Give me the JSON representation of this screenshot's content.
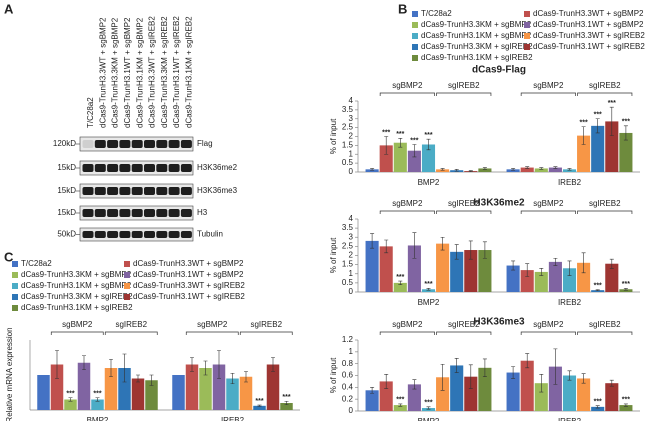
{
  "panels": [
    "A",
    "B",
    "C"
  ],
  "blot": {
    "lanes": [
      "T/C28a2",
      "dCas9-TrunH3.3WT + sgBMP2",
      "dCas9-TrunH3.3KM + sgBMP2",
      "dCas9-TrunH3.1WT + sgBMP2",
      "dCas9-TrunH3.1KM + sgBMP2",
      "dCas9-TrunH3.3WT + sgIREB2",
      "dCas9-TrunH3.3KM + sgIREB2",
      "dCas9-TrunH3.1WT + sgIREB2",
      "dCas9-TrunH3.1KM + sgIREB2"
    ],
    "rows": [
      {
        "label": "Flag",
        "marker": "120kD"
      },
      {
        "label": "H3K36me2",
        "marker": "15kD"
      },
      {
        "label": "H3K36me3",
        "marker": "15kD"
      },
      {
        "label": "H3",
        "marker": "15kD"
      },
      {
        "label": "Tubulin",
        "marker": "50kD"
      }
    ]
  },
  "chart_data": [
    {
      "type": "bar",
      "title": "dCas9-Flag",
      "ylabel": "% of input",
      "categories": [
        "BMP2",
        "IREB2"
      ],
      "ylim": [
        0,
        4
      ],
      "yticks": [
        0,
        0.5,
        1,
        1.5,
        2,
        2.5,
        3,
        3.5,
        4
      ],
      "brackets": [
        "sgBMP2",
        "sgIREB2"
      ],
      "series": [
        {
          "name": "T/C28a2",
          "color": "#4472c4",
          "values": [
            0.15,
            0.15
          ],
          "errors": [
            0.05,
            0.05
          ],
          "labels": [
            null,
            null
          ]
        },
        {
          "name": "dCas9-TrunH3.3WT + sgBMP2",
          "color": "#c0504d",
          "values": [
            1.5,
            0.25
          ],
          "errors": [
            0.5,
            0.05
          ],
          "labels": [
            "***",
            null
          ]
        },
        {
          "name": "dCas9-TrunH3.3KM + sgBMP2",
          "color": "#9bbb59",
          "values": [
            1.65,
            0.2
          ],
          "errors": [
            0.25,
            0.05
          ],
          "labels": [
            "***",
            null
          ]
        },
        {
          "name": "dCas9-TrunH3.1WT + sgBMP2",
          "color": "#8064a2",
          "values": [
            1.2,
            0.25
          ],
          "errors": [
            0.35,
            0.05
          ],
          "labels": [
            "***",
            null
          ]
        },
        {
          "name": "dCas9-TrunH3.1KM + sgBMP2",
          "color": "#4bacc6",
          "values": [
            1.55,
            0.15
          ],
          "errors": [
            0.3,
            0.05
          ],
          "labels": [
            "***",
            null
          ]
        },
        {
          "name": "dCas9-TrunH3.3WT + sgIREB2",
          "color": "#f79646",
          "values": [
            0.15,
            2.05
          ],
          "errors": [
            0.05,
            0.5
          ],
          "labels": [
            null,
            "***"
          ]
        },
        {
          "name": "dCas9-TrunH3.3KM + sgIREB2",
          "color": "#2e75b6",
          "values": [
            0.1,
            2.6
          ],
          "errors": [
            0.05,
            0.4
          ],
          "labels": [
            null,
            "***"
          ]
        },
        {
          "name": "dCas9-TrunH3.1WT + sgIREB2",
          "color": "#9e3532",
          "values": [
            0.05,
            2.85
          ],
          "errors": [
            0.03,
            0.8
          ],
          "labels": [
            null,
            "***"
          ]
        },
        {
          "name": "dCas9-TrunH3.1KM + sgIREB2",
          "color": "#6e8b3d",
          "values": [
            0.2,
            2.2
          ],
          "errors": [
            0.05,
            0.4
          ],
          "labels": [
            null,
            "***"
          ]
        }
      ]
    },
    {
      "type": "bar",
      "title": "H3K36me2",
      "ylabel": "% of input",
      "categories": [
        "BMP2",
        "IREB2"
      ],
      "ylim": [
        0,
        4
      ],
      "yticks": [
        0,
        0.5,
        1,
        1.5,
        2,
        2.5,
        3,
        3.5,
        4
      ],
      "brackets": [
        "sgBMP2",
        "sgIREB2"
      ],
      "series": [
        {
          "name": "T/C28a2",
          "color": "#4472c4",
          "values": [
            2.8,
            1.45
          ],
          "errors": [
            0.4,
            0.25
          ],
          "labels": [
            null,
            null
          ]
        },
        {
          "name": "dCas9-TrunH3.3WT + sgBMP2",
          "color": "#c0504d",
          "values": [
            2.5,
            1.2
          ],
          "errors": [
            0.35,
            0.35
          ],
          "labels": [
            null,
            null
          ]
        },
        {
          "name": "dCas9-TrunH3.3KM + sgBMP2",
          "color": "#9bbb59",
          "values": [
            0.5,
            1.1
          ],
          "errors": [
            0.1,
            0.2
          ],
          "labels": [
            "***",
            null
          ]
        },
        {
          "name": "dCas9-TrunH3.1WT + sgBMP2",
          "color": "#8064a2",
          "values": [
            2.55,
            1.65
          ],
          "errors": [
            0.7,
            0.2
          ],
          "labels": [
            null,
            null
          ]
        },
        {
          "name": "dCas9-TrunH3.1KM + sgBMP2",
          "color": "#4bacc6",
          "values": [
            0.15,
            1.3
          ],
          "errors": [
            0.05,
            0.4
          ],
          "labels": [
            "***",
            null
          ]
        },
        {
          "name": "dCas9-TrunH3.3WT + sgIREB2",
          "color": "#f79646",
          "values": [
            2.65,
            1.6
          ],
          "errors": [
            0.35,
            0.55
          ],
          "labels": [
            null,
            null
          ]
        },
        {
          "name": "dCas9-TrunH3.3KM + sgIREB2",
          "color": "#2e75b6",
          "values": [
            2.2,
            0.1
          ],
          "errors": [
            0.4,
            0.03
          ],
          "labels": [
            null,
            "***"
          ]
        },
        {
          "name": "dCas9-TrunH3.1WT + sgIREB2",
          "color": "#9e3532",
          "values": [
            2.3,
            1.55
          ],
          "errors": [
            0.5,
            0.25
          ],
          "labels": [
            null,
            null
          ]
        },
        {
          "name": "dCas9-TrunH3.1KM + sgIREB2",
          "color": "#6e8b3d",
          "values": [
            2.3,
            0.15
          ],
          "errors": [
            0.45,
            0.05
          ],
          "labels": [
            null,
            "***"
          ]
        }
      ]
    },
    {
      "type": "bar",
      "title": "H3K36me3",
      "ylabel": "% of input",
      "categories": [
        "BMP2",
        "IREB2"
      ],
      "ylim": [
        0,
        1.2
      ],
      "yticks": [
        0,
        0.2,
        0.4,
        0.6,
        0.8,
        1,
        1.2
      ],
      "brackets": [
        "sgBMP2",
        "sgIREB2"
      ],
      "series": [
        {
          "name": "T/C28a2",
          "color": "#4472c4",
          "values": [
            0.35,
            0.65
          ],
          "errors": [
            0.05,
            0.1
          ],
          "labels": [
            null,
            null
          ]
        },
        {
          "name": "dCas9-TrunH3.3WT + sgBMP2",
          "color": "#c0504d",
          "values": [
            0.5,
            0.85
          ],
          "errors": [
            0.12,
            0.12
          ],
          "labels": [
            null,
            null
          ]
        },
        {
          "name": "dCas9-TrunH3.3KM + sgBMP2",
          "color": "#9bbb59",
          "values": [
            0.1,
            0.47
          ],
          "errors": [
            0.02,
            0.15
          ],
          "labels": [
            "***",
            null
          ]
        },
        {
          "name": "dCas9-TrunH3.1WT + sgBMP2",
          "color": "#8064a2",
          "values": [
            0.45,
            0.75
          ],
          "errors": [
            0.08,
            0.3
          ],
          "labels": [
            null,
            null
          ]
        },
        {
          "name": "dCas9-TrunH3.1KM + sgBMP2",
          "color": "#4bacc6",
          "values": [
            0.05,
            0.6
          ],
          "errors": [
            0.02,
            0.08
          ],
          "labels": [
            "***",
            null
          ]
        },
        {
          "name": "dCas9-TrunH3.3WT + sgIREB2",
          "color": "#f79646",
          "values": [
            0.57,
            0.55
          ],
          "errors": [
            0.22,
            0.08
          ],
          "labels": [
            null,
            null
          ]
        },
        {
          "name": "dCas9-TrunH3.3KM + sgIREB2",
          "color": "#2e75b6",
          "values": [
            0.77,
            0.07
          ],
          "errors": [
            0.12,
            0.02
          ],
          "labels": [
            null,
            "***"
          ]
        },
        {
          "name": "dCas9-TrunH3.1WT + sgIREB2",
          "color": "#9e3532",
          "values": [
            0.58,
            0.47
          ],
          "errors": [
            0.2,
            0.05
          ],
          "labels": [
            null,
            null
          ]
        },
        {
          "name": "dCas9-TrunH3.1KM + sgIREB2",
          "color": "#6e8b3d",
          "values": [
            0.73,
            0.1
          ],
          "errors": [
            0.15,
            0.02
          ],
          "labels": [
            null,
            "***"
          ]
        }
      ]
    },
    {
      "type": "bar",
      "ylabel": "Relative mRNA expression",
      "categories": [
        "BMP2",
        "IREB2"
      ],
      "ylim": [
        0,
        2
      ],
      "brackets": [
        "sgBMP2",
        "sgIREB2"
      ],
      "series": [
        {
          "name": "T/C28a2",
          "color": "#4472c4",
          "values": [
            1,
            1
          ],
          "errors": [
            0,
            0
          ],
          "labels": [
            null,
            null
          ]
        },
        {
          "name": "dCas9-TrunH3.3WT + sgBMP2",
          "color": "#c0504d",
          "values": [
            1.3,
            1.3
          ],
          "errors": [
            0.4,
            0.2
          ],
          "labels": [
            null,
            null
          ]
        },
        {
          "name": "dCas9-TrunH3.3KM + sgBMP2",
          "color": "#9bbb59",
          "values": [
            0.3,
            1.2
          ],
          "errors": [
            0.05,
            0.2
          ],
          "labels": [
            "***",
            null
          ]
        },
        {
          "name": "dCas9-TrunH3.1WT + sgBMP2",
          "color": "#8064a2",
          "values": [
            1.35,
            1.3
          ],
          "errors": [
            0.2,
            0.4
          ],
          "labels": [
            null,
            null
          ]
        },
        {
          "name": "dCas9-TrunH3.1KM + sgBMP2",
          "color": "#4bacc6",
          "values": [
            0.3,
            0.9
          ],
          "errors": [
            0.05,
            0.15
          ],
          "labels": [
            "***",
            null
          ]
        },
        {
          "name": "dCas9-TrunH3.3WT + sgIREB2",
          "color": "#f79646",
          "values": [
            1.2,
            0.95
          ],
          "errors": [
            0.25,
            0.15
          ],
          "labels": [
            null,
            null
          ]
        },
        {
          "name": "dCas9-TrunH3.3KM + sgIREB2",
          "color": "#2e75b6",
          "values": [
            1.2,
            0.12
          ],
          "errors": [
            0.4,
            0.02
          ],
          "labels": [
            null,
            "***"
          ]
        },
        {
          "name": "dCas9-TrunH3.1WT + sgIREB2",
          "color": "#9e3532",
          "values": [
            0.9,
            1.3
          ],
          "errors": [
            0.1,
            0.2
          ],
          "labels": [
            null,
            null
          ]
        },
        {
          "name": "dCas9-TrunH3.1KM + sgIREB2",
          "color": "#6e8b3d",
          "values": [
            0.85,
            0.2
          ],
          "errors": [
            0.15,
            0.05
          ],
          "labels": [
            null,
            "***"
          ]
        }
      ]
    }
  ]
}
